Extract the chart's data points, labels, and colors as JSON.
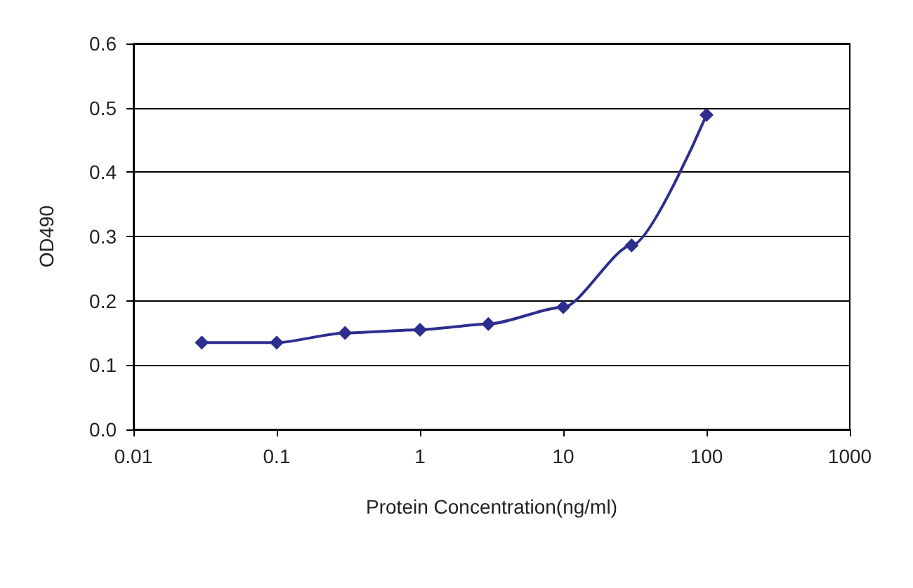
{
  "chart_data": {
    "type": "line",
    "xlabel": "Protein Concentration(ng/ml)",
    "ylabel": "OD490",
    "x": [
      0.03,
      0.1,
      0.3,
      1,
      3,
      10,
      30,
      100
    ],
    "series": [
      {
        "color": "#2e2e8f",
        "values": [
          0.135,
          0.135,
          0.15,
          0.155,
          0.164,
          0.19,
          0.286,
          0.489
        ]
      }
    ],
    "log": "x",
    "xlim": [
      0.01,
      1000
    ],
    "xticks": [
      0.01,
      0.1,
      1,
      10,
      100,
      1000
    ],
    "ylim": [
      0,
      0.6
    ],
    "yticks": [
      {
        "value": 0,
        "label": "0.0"
      },
      0.1,
      0.2,
      0.3,
      0.4,
      0.5,
      0.6
    ],
    "grid": "y",
    "marker": "diamond",
    "line_style": "solid"
  }
}
